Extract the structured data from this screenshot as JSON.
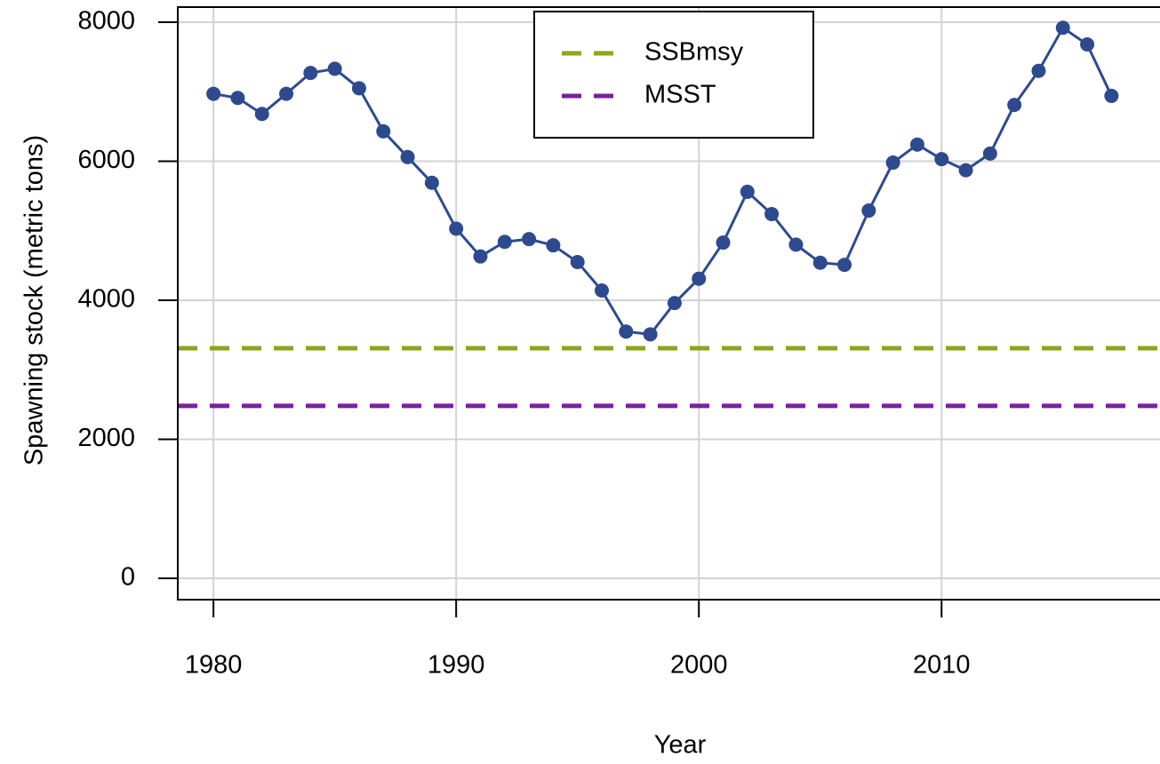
{
  "chart_data": {
    "type": "line",
    "x_label": "Year",
    "y_label": "Spawning stock (metric tons)",
    "x": [
      1980,
      1981,
      1982,
      1983,
      1984,
      1985,
      1986,
      1987,
      1988,
      1989,
      1990,
      1991,
      1992,
      1993,
      1994,
      1995,
      1996,
      1997,
      1998,
      1999,
      2000,
      2001,
      2002,
      2003,
      2004,
      2005,
      2006,
      2007,
      2008,
      2009,
      2010,
      2011,
      2012,
      2013,
      2014,
      2015,
      2016,
      2017
    ],
    "series": [
      {
        "name": "Spawning stock",
        "color": "#2e4a8f",
        "values": [
          6970,
          6910,
          6680,
          6970,
          7270,
          7330,
          7050,
          6430,
          6060,
          5690,
          5030,
          4630,
          4840,
          4880,
          4790,
          4550,
          4140,
          3550,
          3510,
          3960,
          4310,
          4830,
          5560,
          5240,
          4800,
          4540,
          4510,
          5290,
          5980,
          6240,
          6030,
          5870,
          6110,
          6810,
          7300,
          7920,
          7680,
          6940
        ]
      }
    ],
    "reference_lines": [
      {
        "name": "SSBmsy",
        "value": 3310,
        "color": "#8aa61b"
      },
      {
        "name": "MSST",
        "value": 2480,
        "color": "#7a1fa2"
      }
    ],
    "xlim": [
      1978.53,
      2019.0
    ],
    "ylim": [
      -307,
      8217
    ],
    "xticks": [
      1980,
      1990,
      2000,
      2010
    ],
    "yticks": [
      0,
      2000,
      4000,
      6000,
      8000
    ],
    "grid": true,
    "legend": "top"
  }
}
